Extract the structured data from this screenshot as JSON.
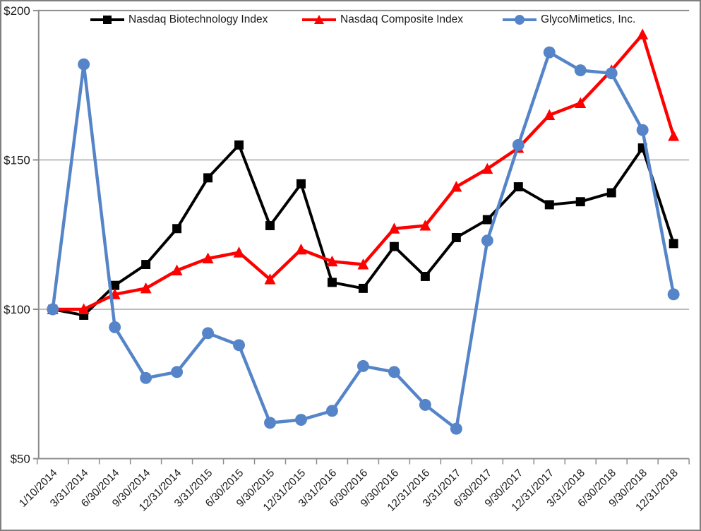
{
  "figure": {
    "background": "#FFFFFF",
    "border_color": "#7F7F7F"
  },
  "colors": {
    "gridline": "#A6A6A6",
    "axis": "#8C8C8C",
    "text": "#1A1A1A"
  },
  "chart_data": {
    "type": "line",
    "title": "",
    "xlabel": "",
    "ylabel": "",
    "grid": "horizontal",
    "legend_position": "top",
    "ylim": [
      50,
      200
    ],
    "y_axis": {
      "tick_labels": [
        "$200",
        "$150",
        "$100",
        "$50"
      ],
      "tick_values": [
        200,
        150,
        100,
        50
      ],
      "gridline_values": [
        150,
        100
      ]
    },
    "categories": [
      "1/10/2014",
      "3/31/2014",
      "6/30/2014",
      "9/30/2014",
      "12/31/2014",
      "3/31/2015",
      "6/30/2015",
      "9/30/2015",
      "12/31/2015",
      "3/31/2016",
      "6/30/2016",
      "9/30/2016",
      "12/31/2016",
      "3/31/2017",
      "6/30/2017",
      "9/30/2017",
      "12/31/2017",
      "3/31/2018",
      "6/30/2018",
      "9/30/2018",
      "12/31/2018"
    ],
    "series": [
      {
        "name": "Nasdaq Biotechnology Index",
        "color": "#000000",
        "marker": "square",
        "values": [
          100,
          98,
          108,
          115,
          127,
          144,
          155,
          128,
          142,
          109,
          107,
          121,
          111,
          124,
          130,
          141,
          135,
          136,
          139,
          154,
          122
        ]
      },
      {
        "name": "Nasdaq Composite Index",
        "color": "#FF0000",
        "marker": "triangle",
        "values": [
          100,
          100,
          105,
          107,
          113,
          117,
          119,
          110,
          120,
          116,
          115,
          127,
          128,
          141,
          147,
          154,
          165,
          169,
          180,
          192,
          158
        ]
      },
      {
        "name": "GlycoMimetics, Inc.",
        "color": "#5585C8",
        "marker": "circle",
        "values": [
          100,
          182,
          94,
          77,
          79,
          92,
          88,
          62,
          63,
          66,
          81,
          79,
          68,
          60,
          123,
          155,
          186,
          180,
          179,
          160,
          105
        ]
      }
    ]
  }
}
